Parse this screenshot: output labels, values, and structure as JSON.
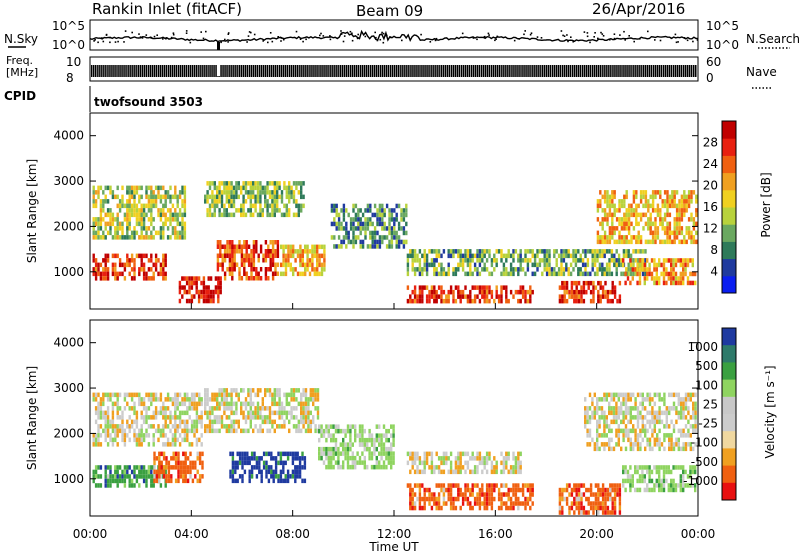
{
  "header": {
    "station": "Rankin Inlet (fitACF)",
    "beam": "Beam 09",
    "date": "26/Apr/2016"
  },
  "panels": {
    "nsky_label": "N.Sky",
    "nsky_tick_top": "10^5",
    "nsky_tick_bottom": "10^0",
    "nsearch_label": "N.Search",
    "nsearch_tick_top": "10^5",
    "nsearch_tick_bottom": "10^0",
    "freq_label_line1": "Freq.",
    "freq_label_line2": "[MHz]",
    "freq_tick_top": "10",
    "freq_tick_bottom": "8",
    "nave_label": "Nave",
    "nave_tick_top": "60",
    "nave_tick_bottom": "0",
    "cpid_label": "CPID",
    "cpid_value": "twofsound 3503"
  },
  "colors": {
    "power_scale": [
      "#0a1ef0",
      "#1f3a9e",
      "#2e7a5a",
      "#6aa860",
      "#b8d23c",
      "#f0d020",
      "#f0a020",
      "#f06010",
      "#e82010",
      "#c00000"
    ],
    "velocity_scale": [
      "#e81010",
      "#f06010",
      "#f0a020",
      "#f0d8a0",
      "#cccccc",
      "#c8c8c8",
      "#8fd460",
      "#3aa040",
      "#2e7a6a",
      "#1f3aa0"
    ]
  },
  "chart_data": [
    {
      "type": "heatmap",
      "name": "power",
      "ylabel": "Slant Range [km]",
      "yticks": [
        1000,
        2000,
        3000,
        4000
      ],
      "ylim": [
        180,
        4500
      ],
      "xticks": [
        "00:00",
        "04:00",
        "08:00",
        "12:00",
        "16:00",
        "20:00",
        "00:00"
      ],
      "xlim_hours": [
        0,
        24
      ],
      "colorbar": {
        "label": "Power [dB]",
        "ticks": [
          "4",
          "8",
          "12",
          "16",
          "20",
          "24",
          "28"
        ],
        "range": [
          0,
          30
        ]
      },
      "regions": [
        {
          "t0": 0.1,
          "t1": 3.8,
          "r0": 1700,
          "r1": 2900,
          "level": 14
        },
        {
          "t0": 0.1,
          "t1": 3.0,
          "r0": 800,
          "r1": 1400,
          "level": 25
        },
        {
          "t0": 3.5,
          "t1": 5.2,
          "r0": 300,
          "r1": 900,
          "level": 27
        },
        {
          "t0": 5.0,
          "t1": 7.5,
          "r0": 800,
          "r1": 1700,
          "level": 24
        },
        {
          "t0": 7.5,
          "t1": 9.3,
          "r0": 900,
          "r1": 1600,
          "level": 18
        },
        {
          "t0": 4.5,
          "t1": 8.5,
          "r0": 2200,
          "r1": 3000,
          "level": 12
        },
        {
          "t0": 9.5,
          "t1": 12.5,
          "r0": 1500,
          "r1": 2500,
          "level": 9
        },
        {
          "t0": 12.5,
          "t1": 17.5,
          "r0": 300,
          "r1": 700,
          "level": 26
        },
        {
          "t0": 12.5,
          "t1": 22.0,
          "r0": 900,
          "r1": 1500,
          "level": 11
        },
        {
          "t0": 18.5,
          "t1": 21.0,
          "r0": 300,
          "r1": 800,
          "level": 26
        },
        {
          "t0": 20.0,
          "t1": 24.0,
          "r0": 1600,
          "r1": 2800,
          "level": 18
        },
        {
          "t0": 21.0,
          "t1": 24.0,
          "r0": 700,
          "r1": 1300,
          "level": 20
        }
      ]
    },
    {
      "type": "heatmap",
      "name": "velocity",
      "ylabel": "Slant Range [km]",
      "yticks": [
        1000,
        2000,
        3000,
        4000
      ],
      "ylim": [
        180,
        4500
      ],
      "xticks": [
        "00:00",
        "04:00",
        "08:00",
        "12:00",
        "16:00",
        "20:00",
        "00:00"
      ],
      "xlim_hours": [
        0,
        24
      ],
      "xlabel": "Time UT",
      "colorbar": {
        "label": "Velocity [m s⁻¹]",
        "ticks": [
          "1000",
          "500",
          "100",
          "25",
          "-25",
          "-100",
          "-500",
          "-1000"
        ],
        "range": [
          -1000,
          1000
        ]
      },
      "regions": [
        {
          "t0": 0.1,
          "t1": 4.5,
          "r0": 1700,
          "r1": 2900,
          "level": 0
        },
        {
          "t0": 0.1,
          "t1": 3.0,
          "r0": 800,
          "r1": 1300,
          "level": 300
        },
        {
          "t0": 2.5,
          "t1": 4.5,
          "r0": 900,
          "r1": 1600,
          "level": -300
        },
        {
          "t0": 5.5,
          "t1": 8.5,
          "r0": 900,
          "r1": 1600,
          "level": 700
        },
        {
          "t0": 4.5,
          "t1": 9.0,
          "r0": 2000,
          "r1": 3000,
          "level": 0
        },
        {
          "t0": 9.0,
          "t1": 12.0,
          "r0": 1200,
          "r1": 2200,
          "level": 50
        },
        {
          "t0": 12.5,
          "t1": 17.5,
          "r0": 300,
          "r1": 900,
          "level": -300
        },
        {
          "t0": 12.5,
          "t1": 17.0,
          "r0": 1100,
          "r1": 1600,
          "level": 0
        },
        {
          "t0": 18.5,
          "t1": 21.0,
          "r0": 200,
          "r1": 900,
          "level": -300
        },
        {
          "t0": 19.5,
          "t1": 24.0,
          "r0": 1600,
          "r1": 2900,
          "level": 0
        },
        {
          "t0": 21.0,
          "t1": 24.0,
          "r0": 700,
          "r1": 1300,
          "level": 60
        }
      ]
    }
  ]
}
